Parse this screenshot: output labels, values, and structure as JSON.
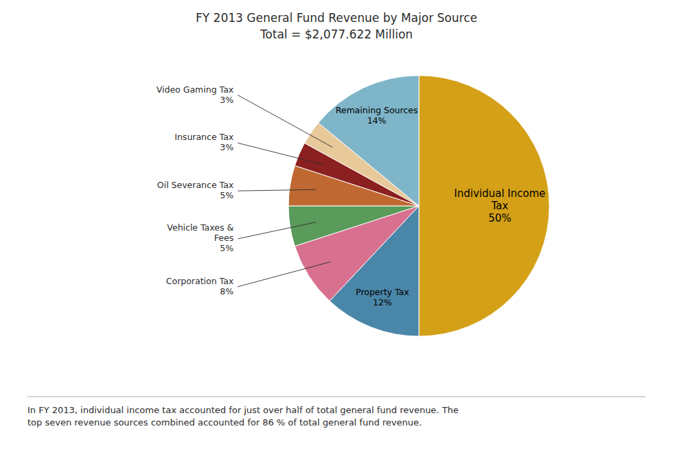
{
  "chart_data": {
    "type": "pie",
    "title": "FY 2013 General Fund Revenue by Major Source",
    "subtitle": "Total = $2,077.622 Million",
    "categories": [
      "Individual Income\nTax",
      "Property Tax",
      "Corporation Tax",
      "Vehicle Taxes &\nFees",
      "Oil Severance Tax",
      "Insurance Tax",
      "Video Gaming Tax",
      "Remaining Sources"
    ],
    "values": [
      50,
      12,
      8,
      5,
      5,
      3,
      3,
      14
    ],
    "value_labels": [
      "50%",
      "12%",
      "8%",
      "5%",
      "5%",
      "3%",
      "3%",
      "14%"
    ],
    "colors": [
      "#D4A017",
      "#4A86A8",
      "#D87090",
      "#5A9A5A",
      "#C06832",
      "#8B2020",
      "#E8C99A",
      "#7EB5C8"
    ],
    "annotations": [
      "In FY 2013, individual income tax accounted for just over half of total general fund revenue. The\ntop seven revenue sources combined accounted for 86 % of total general fund revenue."
    ]
  }
}
